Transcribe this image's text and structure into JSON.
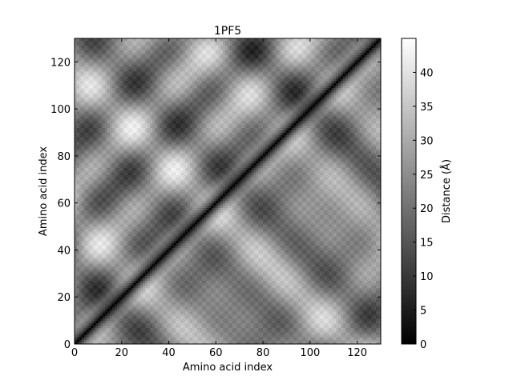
{
  "chart_data": {
    "type": "heatmap",
    "title": "1PF5",
    "xlabel": "Amino acid index",
    "ylabel": "Amino acid index",
    "n_residues": 130,
    "xlim": [
      0,
      130
    ],
    "ylim": [
      0,
      130
    ],
    "x_ticks": [
      0,
      20,
      40,
      60,
      80,
      100,
      120
    ],
    "y_ticks": [
      0,
      20,
      40,
      60,
      80,
      100,
      120
    ],
    "colorbar": {
      "label": "Distance (Å)",
      "range": [
        0,
        45
      ],
      "ticks": [
        0,
        5,
        10,
        15,
        20,
        25,
        30,
        35,
        40
      ],
      "colormap": "gray",
      "low_color": "#000000",
      "high_color": "#ffffff"
    },
    "description_values": {
      "diagonal_distance": 0,
      "max_distance_approx": 44
    }
  }
}
